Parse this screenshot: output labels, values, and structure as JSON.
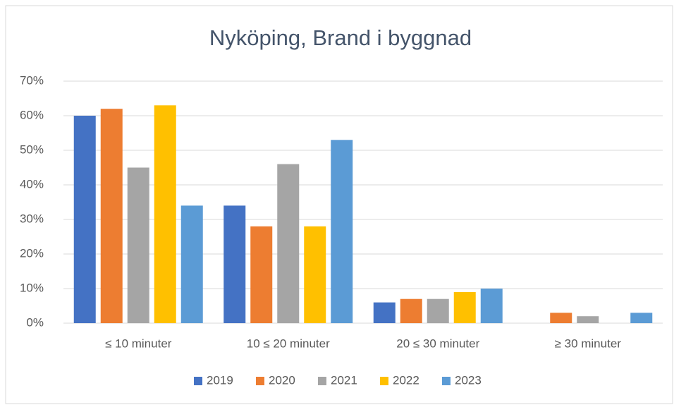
{
  "chart_data": {
    "type": "bar",
    "title": "Nyköping, Brand i byggnad",
    "categories": [
      "≤ 10 minuter",
      "10 ≤ 20 minuter",
      "20 ≤ 30 minuter",
      "≥ 30 minuter"
    ],
    "series": [
      {
        "name": "2019",
        "color": "#4472c4",
        "values": [
          60,
          34,
          6,
          0
        ]
      },
      {
        "name": "2020",
        "color": "#ed7d31",
        "values": [
          62,
          28,
          7,
          3
        ]
      },
      {
        "name": "2021",
        "color": "#a5a5a5",
        "values": [
          45,
          46,
          7,
          2
        ]
      },
      {
        "name": "2022",
        "color": "#ffc000",
        "values": [
          63,
          28,
          9,
          0
        ]
      },
      {
        "name": "2023",
        "color": "#5b9bd5",
        "values": [
          34,
          53,
          10,
          3
        ]
      }
    ],
    "ylim": [
      0,
      70
    ],
    "yticks": [
      {
        "value": 0,
        "label": "0%"
      },
      {
        "value": 10,
        "label": "10%"
      },
      {
        "value": 20,
        "label": "20%"
      },
      {
        "value": 30,
        "label": "30%"
      },
      {
        "value": 40,
        "label": "40%"
      },
      {
        "value": 50,
        "label": "50%"
      },
      {
        "value": 60,
        "label": "60%"
      },
      {
        "value": 70,
        "label": "70%"
      }
    ],
    "grid": true,
    "legend": "bottom"
  }
}
